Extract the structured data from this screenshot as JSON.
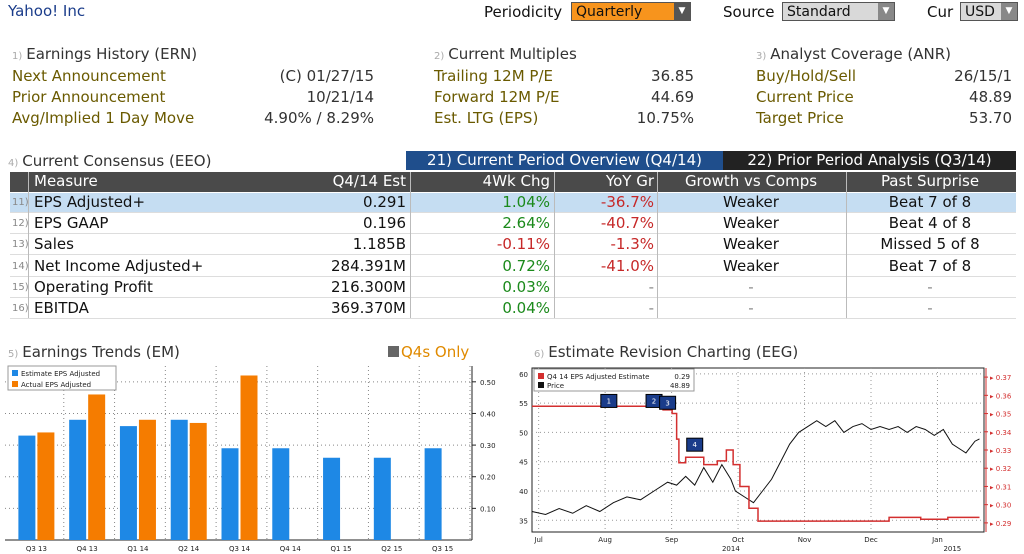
{
  "header": {
    "security": "Yahoo! Inc",
    "periodicity_label": "Periodicity",
    "periodicity_value": "Quarterly",
    "source_label": "Source",
    "source_value": "Standard",
    "cur_label": "Cur",
    "cur_value": "USD"
  },
  "earnings_history": {
    "num": "1)",
    "title": "Earnings History (ERN)",
    "rows": [
      {
        "label": "Next Announcement",
        "value": "(C)  01/27/15"
      },
      {
        "label": "Prior Announcement",
        "value": "10/21/14"
      },
      {
        "label": "Avg/Implied 1 Day Move",
        "value": "4.90% / 8.29%"
      }
    ]
  },
  "current_multiples": {
    "num": "2)",
    "title": "Current Multiples",
    "rows": [
      {
        "label": "Trailing 12M P/E",
        "value": "36.85"
      },
      {
        "label": "Forward 12M P/E",
        "value": "44.69"
      },
      {
        "label": "Est. LTG (EPS)",
        "value": "10.75%"
      }
    ]
  },
  "analyst_coverage": {
    "num": "3)",
    "title": "Analyst Coverage (ANR)",
    "rows": [
      {
        "label": "Buy/Hold/Sell",
        "value": "26/15/1"
      },
      {
        "label": "Current Price",
        "value": "48.89"
      },
      {
        "label": "Target Price",
        "value": "53.70"
      }
    ]
  },
  "consensus": {
    "num": "4)",
    "title": "Current Consensus (EEO)",
    "tab_current": "21) Current Period Overview (Q4/14)",
    "tab_prior": "22) Prior Period Analysis (Q3/14)",
    "columns": [
      "Measure",
      "Q4/14 Est",
      "4Wk Chg",
      "YoY Gr",
      "Growth vs Comps",
      "Past Surprise"
    ],
    "rows": [
      {
        "num": "11)",
        "measure": "EPS Adjusted+",
        "est": "0.291",
        "chg": "1.04%",
        "yoy": "-36.7%",
        "growth": "Weaker",
        "surprise": "Beat 7 of 8"
      },
      {
        "num": "12)",
        "measure": "EPS GAAP",
        "est": "0.196",
        "chg": "2.64%",
        "yoy": "-40.7%",
        "growth": "Weaker",
        "surprise": "Beat 4 of 8"
      },
      {
        "num": "13)",
        "measure": "Sales",
        "est": "1.185B",
        "chg": "-0.11%",
        "yoy": "-1.3%",
        "growth": "Weaker",
        "surprise": "Missed 5 of 8"
      },
      {
        "num": "14)",
        "measure": "Net Income Adjusted+",
        "est": "284.391M",
        "chg": "0.72%",
        "yoy": "-41.0%",
        "growth": "Weaker",
        "surprise": "Beat 7 of 8"
      },
      {
        "num": "15)",
        "measure": "Operating Profit",
        "est": "216.300M",
        "chg": "0.03%",
        "yoy": "-",
        "growth": "-",
        "surprise": "-"
      },
      {
        "num": "16)",
        "measure": "EBITDA",
        "est": "369.370M",
        "chg": "0.04%",
        "yoy": "-",
        "growth": "-",
        "surprise": "-"
      }
    ]
  },
  "trends": {
    "num": "5)",
    "title": "Earnings Trends (EM)",
    "q4s_label": "Q4s Only"
  },
  "revision": {
    "num": "6)",
    "title": "Estimate Revision Charting (EEG)"
  },
  "chart_data": [
    {
      "type": "bar",
      "categories": [
        "Q3 13",
        "Q4 13",
        "Q1 14",
        "Q2 14",
        "Q3 14",
        "Q4 14",
        "Q1 15",
        "Q2 15",
        "Q3 15"
      ],
      "series": [
        {
          "name": "Estimate EPS Adjusted",
          "color": "#1e88e5",
          "values": [
            0.33,
            0.38,
            0.36,
            0.38,
            0.29,
            0.29,
            0.26,
            0.26,
            0.29
          ]
        },
        {
          "name": "Actual EPS Adjusted",
          "color": "#f57c00",
          "values": [
            0.34,
            0.46,
            0.38,
            0.37,
            0.52,
            null,
            null,
            null,
            null
          ]
        }
      ],
      "y_ticks": [
        "0.10",
        "0.20",
        "0.30",
        "0.40",
        "0.50"
      ],
      "ylim": [
        0.0,
        0.55
      ],
      "legend": "top-left"
    },
    {
      "type": "line",
      "x_ticks": [
        "Jul",
        "Aug",
        "Sep",
        "Oct",
        "Nov",
        "Dec",
        "Jan"
      ],
      "x_years": [
        "2014",
        "2015"
      ],
      "left_ticks": [
        "35",
        "40",
        "45",
        "50",
        "55",
        "60"
      ],
      "right_ticks": [
        "0.29",
        "0.30",
        "0.31",
        "0.32",
        "0.33",
        "0.34",
        "0.35",
        "0.36",
        "0.37"
      ],
      "left_lim": [
        33,
        61
      ],
      "right_lim": [
        0.285,
        0.375
      ],
      "legend": [
        {
          "name": "Q4 14 EPS Adjusted Estimate",
          "value": "0.29",
          "color": "#d32f2f"
        },
        {
          "name": "Price",
          "value": "48.89",
          "color": "#111111"
        }
      ],
      "markers": [
        "1",
        "2",
        "3",
        "4"
      ],
      "estimate": [
        [
          0.0,
          0.354
        ],
        [
          0.29,
          0.354
        ],
        [
          0.29,
          0.352
        ],
        [
          0.31,
          0.352
        ],
        [
          0.31,
          0.35
        ],
        [
          0.32,
          0.35
        ],
        [
          0.32,
          0.336
        ],
        [
          0.325,
          0.336
        ],
        [
          0.325,
          0.323
        ],
        [
          0.34,
          0.323
        ],
        [
          0.34,
          0.326
        ],
        [
          0.38,
          0.326
        ],
        [
          0.38,
          0.322
        ],
        [
          0.41,
          0.322
        ],
        [
          0.41,
          0.324
        ],
        [
          0.43,
          0.324
        ],
        [
          0.43,
          0.33
        ],
        [
          0.445,
          0.33
        ],
        [
          0.445,
          0.322
        ],
        [
          0.46,
          0.322
        ],
        [
          0.46,
          0.31
        ],
        [
          0.48,
          0.31
        ],
        [
          0.48,
          0.298
        ],
        [
          0.5,
          0.298
        ],
        [
          0.5,
          0.291
        ],
        [
          0.79,
          0.291
        ],
        [
          0.79,
          0.293
        ],
        [
          0.86,
          0.293
        ],
        [
          0.86,
          0.292
        ],
        [
          0.92,
          0.292
        ],
        [
          0.92,
          0.293
        ],
        [
          0.99,
          0.293
        ]
      ],
      "price": [
        [
          0.0,
          36.5
        ],
        [
          0.03,
          36.0
        ],
        [
          0.06,
          37.0
        ],
        [
          0.09,
          36.2
        ],
        [
          0.12,
          37.5
        ],
        [
          0.15,
          36.5
        ],
        [
          0.18,
          38.0
        ],
        [
          0.21,
          39.0
        ],
        [
          0.24,
          38.5
        ],
        [
          0.27,
          40.0
        ],
        [
          0.3,
          41.5
        ],
        [
          0.32,
          41.0
        ],
        [
          0.34,
          42.5
        ],
        [
          0.36,
          41.0
        ],
        [
          0.38,
          44.0
        ],
        [
          0.4,
          41.5
        ],
        [
          0.42,
          44.5
        ],
        [
          0.44,
          42.0
        ],
        [
          0.45,
          40.0
        ],
        [
          0.47,
          39.0
        ],
        [
          0.49,
          38.0
        ],
        [
          0.51,
          40.0
        ],
        [
          0.53,
          42.0
        ],
        [
          0.55,
          45.0
        ],
        [
          0.57,
          48.0
        ],
        [
          0.59,
          50.0
        ],
        [
          0.61,
          51.0
        ],
        [
          0.63,
          52.0
        ],
        [
          0.65,
          51.0
        ],
        [
          0.67,
          52.0
        ],
        [
          0.69,
          50.0
        ],
        [
          0.71,
          51.0
        ],
        [
          0.73,
          51.5
        ],
        [
          0.75,
          50.5
        ],
        [
          0.77,
          51.0
        ],
        [
          0.79,
          50.5
        ],
        [
          0.81,
          51.0
        ],
        [
          0.83,
          50.0
        ],
        [
          0.85,
          51.0
        ],
        [
          0.87,
          50.5
        ],
        [
          0.89,
          49.5
        ],
        [
          0.91,
          50.5
        ],
        [
          0.93,
          48.0
        ],
        [
          0.95,
          47.0
        ],
        [
          0.96,
          46.5
        ],
        [
          0.97,
          47.5
        ],
        [
          0.98,
          48.5
        ],
        [
          0.99,
          48.89
        ]
      ]
    }
  ]
}
